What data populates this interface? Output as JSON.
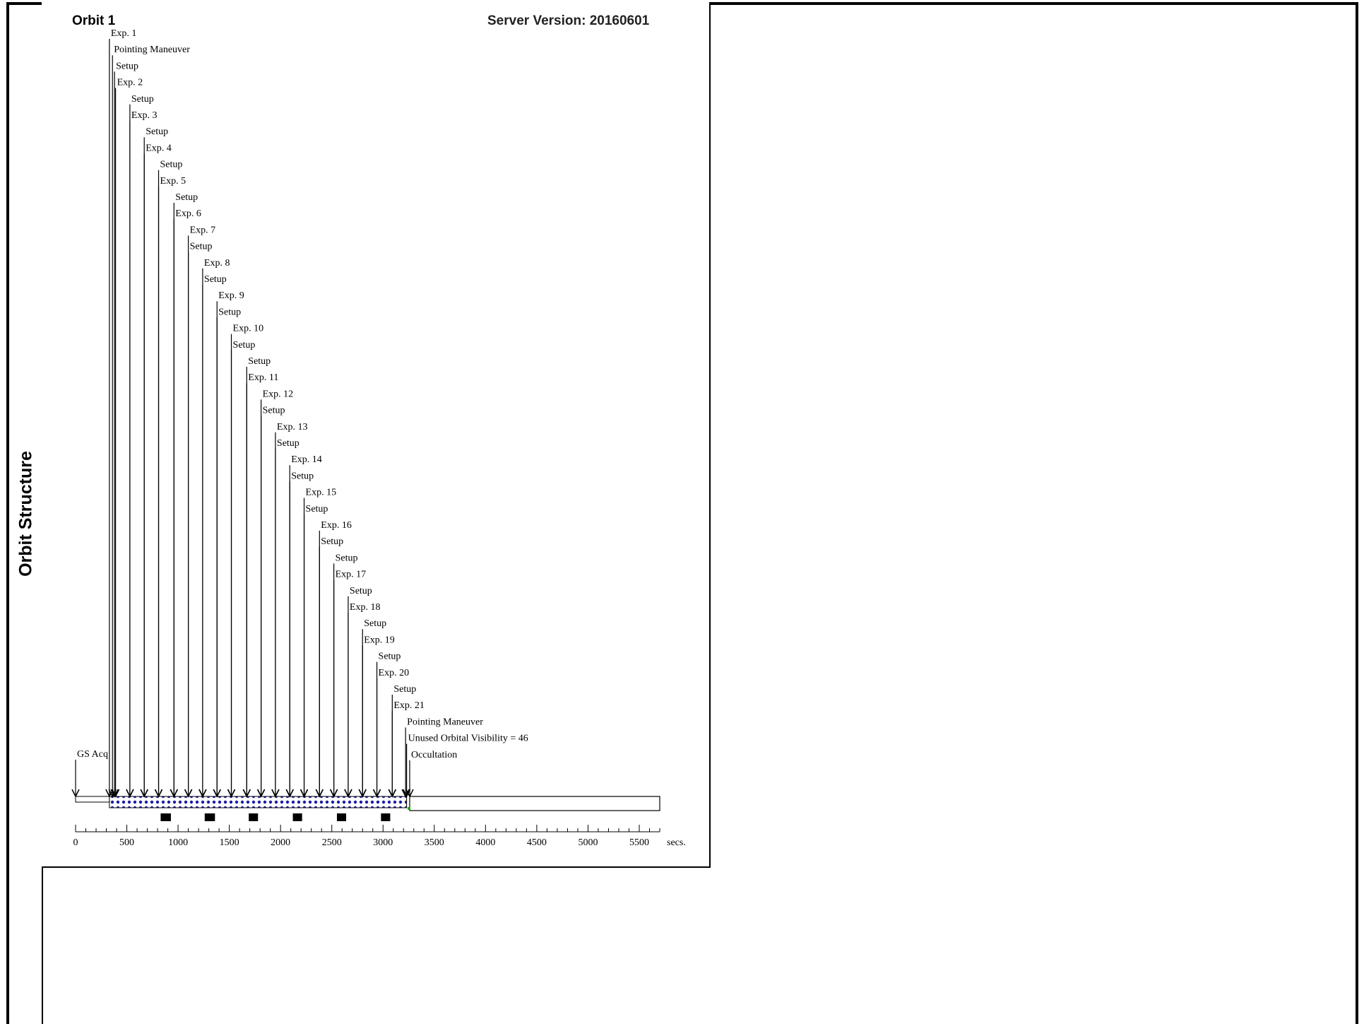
{
  "side_label": "Orbit Structure",
  "header": {
    "orbit_title": "Orbit 1",
    "server_version": "Server Version: 20160601"
  },
  "chart_data": {
    "type": "timeline",
    "x_unit_label": "secs.",
    "x_ticks": [
      0,
      500,
      1000,
      1500,
      2000,
      2500,
      3000,
      3500,
      4000,
      4500,
      5000,
      5500
    ],
    "xlim": [
      0,
      5700
    ],
    "orbit_span_secs": [
      0,
      5700
    ],
    "events": [
      {
        "label": "GS Acq",
        "t": 0
      },
      {
        "label": "Exp. 1",
        "t": 330
      },
      {
        "label": "Pointing Maneuver",
        "t": 360
      },
      {
        "label": "Setup",
        "t": 380
      },
      {
        "label": "Exp. 2",
        "t": 390
      },
      {
        "label": "Setup",
        "t": 530
      },
      {
        "label": "Exp. 3",
        "t": 530
      },
      {
        "label": "Setup",
        "t": 670
      },
      {
        "label": "Exp. 4",
        "t": 670
      },
      {
        "label": "Setup",
        "t": 810
      },
      {
        "label": "Exp. 5",
        "t": 810
      },
      {
        "label": "Setup",
        "t": 960
      },
      {
        "label": "Exp. 6",
        "t": 960
      },
      {
        "label": "Exp. 7",
        "t": 1100
      },
      {
        "label": "Setup",
        "t": 1100
      },
      {
        "label": "Exp. 8",
        "t": 1240
      },
      {
        "label": "Setup",
        "t": 1240
      },
      {
        "label": "Exp. 9",
        "t": 1380
      },
      {
        "label": "Setup",
        "t": 1380
      },
      {
        "label": "Exp. 10",
        "t": 1520
      },
      {
        "label": "Setup",
        "t": 1520
      },
      {
        "label": "Setup",
        "t": 1670
      },
      {
        "label": "Exp. 11",
        "t": 1670
      },
      {
        "label": "Exp. 12",
        "t": 1810
      },
      {
        "label": "Setup",
        "t": 1810
      },
      {
        "label": "Exp. 13",
        "t": 1950
      },
      {
        "label": "Setup",
        "t": 1950
      },
      {
        "label": "Exp. 14",
        "t": 2090
      },
      {
        "label": "Setup",
        "t": 2090
      },
      {
        "label": "Exp. 15",
        "t": 2230
      },
      {
        "label": "Setup",
        "t": 2230
      },
      {
        "label": "Exp. 16",
        "t": 2380
      },
      {
        "label": "Setup",
        "t": 2380
      },
      {
        "label": "Setup",
        "t": 2520
      },
      {
        "label": "Exp. 17",
        "t": 2520
      },
      {
        "label": "Setup",
        "t": 2660
      },
      {
        "label": "Exp. 18",
        "t": 2660
      },
      {
        "label": "Setup",
        "t": 2800
      },
      {
        "label": "Exp. 19",
        "t": 2800
      },
      {
        "label": "Setup",
        "t": 2940
      },
      {
        "label": "Exp. 20",
        "t": 2940
      },
      {
        "label": "Setup",
        "t": 3090
      },
      {
        "label": "Exp. 21",
        "t": 3090
      },
      {
        "label": "Pointing Maneuver",
        "t": 3220
      },
      {
        "label": "Unused Orbital Visibility = 46",
        "t": 3230
      },
      {
        "label": "Occultation",
        "t": 3260
      }
    ],
    "visibility_bar": {
      "start": 330,
      "end": 3230
    },
    "occultation_bar": {
      "start": 3260,
      "end": 5700
    },
    "pre_acq_bar": {
      "start": 0,
      "end": 330
    },
    "dark_blocks": [
      {
        "start": 830,
        "end": 930
      },
      {
        "start": 1260,
        "end": 1360
      },
      {
        "start": 1690,
        "end": 1780
      },
      {
        "start": 2120,
        "end": 2210
      },
      {
        "start": 2550,
        "end": 2640
      },
      {
        "start": 2980,
        "end": 3070
      }
    ],
    "colors": {
      "visibility_fill": "#1a1aa6",
      "marker": "#22aa22",
      "line": "#000000"
    }
  }
}
